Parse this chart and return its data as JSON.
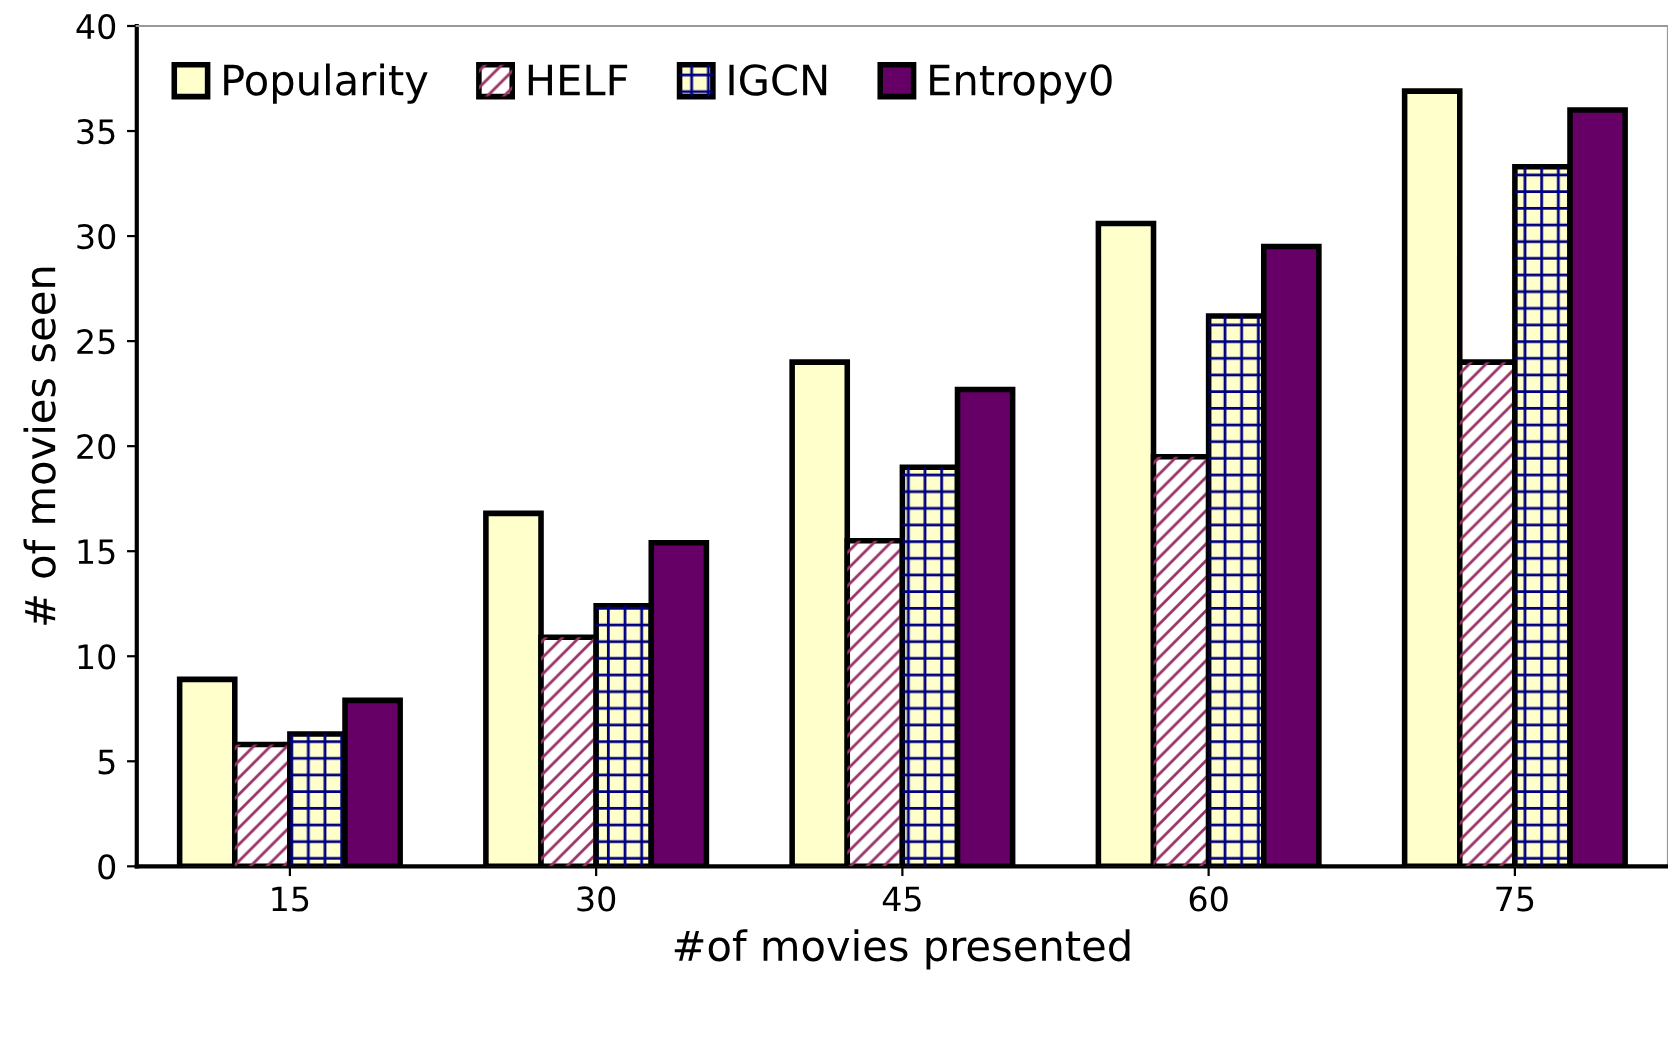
{
  "chart_data": {
    "type": "bar",
    "xlabel": "#of movies presented",
    "ylabel": "# of movies seen",
    "categories": [
      "15",
      "30",
      "45",
      "60",
      "75"
    ],
    "series": [
      {
        "name": "Popularity",
        "color": "#ffffcc",
        "values": [
          8.9,
          16.8,
          24.0,
          30.6,
          36.9
        ]
      },
      {
        "name": "HELF",
        "color": "#993366",
        "values": [
          5.8,
          10.9,
          15.5,
          19.5,
          24.0
        ]
      },
      {
        "name": "IGCN",
        "color": "#000080",
        "values": [
          6.3,
          12.4,
          19.0,
          26.2,
          33.3
        ]
      },
      {
        "name": "Entropy0",
        "color": "#660066",
        "values": [
          7.9,
          15.4,
          22.7,
          29.5,
          36.0
        ]
      }
    ],
    "ylim": [
      0,
      40
    ],
    "yticks": [
      0,
      5,
      10,
      15,
      20,
      25,
      30,
      35,
      40
    ],
    "legend": "top left",
    "grid": false
  }
}
